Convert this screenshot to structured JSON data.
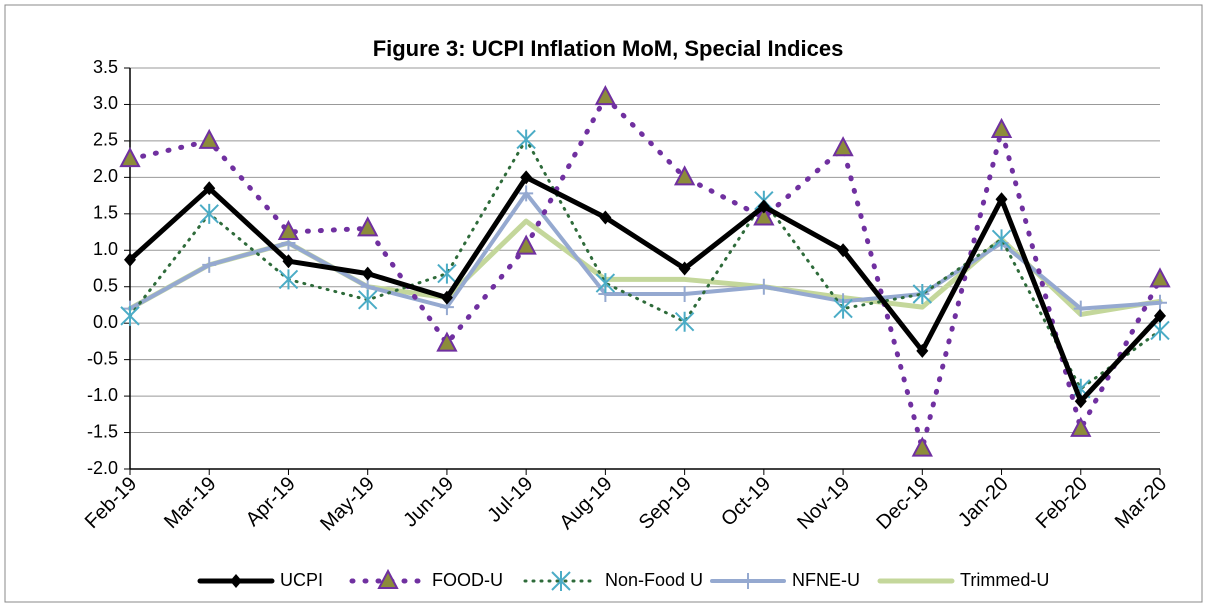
{
  "chart_data": {
    "type": "line",
    "title": "Figure 3: UCPI Inflation MoM, Special Indices",
    "categories": [
      "Feb-19",
      "Mar-19",
      "Apr-19",
      "May-19",
      "Jun-19",
      "Jul-19",
      "Aug-19",
      "Sep-19",
      "Oct-19",
      "Nov-19",
      "Dec-19",
      "Jan-20",
      "Feb-20",
      "Mar-20"
    ],
    "series": [
      {
        "name": "UCPI",
        "color": "#000000",
        "line_style": "solid",
        "line_width": 5,
        "marker": "diamond",
        "marker_color": "#000000",
        "values": [
          0.87,
          1.85,
          0.85,
          0.68,
          0.35,
          2.0,
          1.45,
          0.75,
          1.6,
          1.0,
          -0.38,
          1.7,
          -1.07,
          0.1
        ]
      },
      {
        "name": "FOOD-U",
        "color": "#7030a0",
        "line_style": "dotted",
        "line_width": 5,
        "marker": "triangle",
        "marker_color": "#8c8c3a",
        "values": [
          2.25,
          2.5,
          1.25,
          1.3,
          -0.28,
          1.05,
          3.1,
          2.0,
          1.45,
          2.4,
          -1.72,
          2.65,
          -1.45,
          0.6
        ]
      },
      {
        "name": "Non-Food U",
        "color": "#2e6b3a",
        "line_style": "dotted",
        "line_width": 3,
        "marker": "asterisk",
        "marker_color": "#4bacc6",
        "values": [
          0.1,
          1.5,
          0.6,
          0.32,
          0.68,
          2.52,
          0.55,
          0.02,
          1.68,
          0.2,
          0.4,
          1.15,
          -0.9,
          -0.1
        ]
      },
      {
        "name": "NFNE-U",
        "color": "#95a9d0",
        "line_style": "solid",
        "line_width": 4,
        "marker": "plus",
        "marker_color": "#95a9d0",
        "values": [
          0.2,
          0.8,
          1.1,
          0.5,
          0.22,
          1.78,
          0.4,
          0.4,
          0.5,
          0.3,
          0.4,
          1.1,
          0.2,
          0.28
        ]
      },
      {
        "name": "Trimmed-U",
        "color": "#c4d79b",
        "line_style": "solid",
        "line_width": 5,
        "marker": "none",
        "marker_color": "#c4d79b",
        "values": [
          0.2,
          0.8,
          1.1,
          0.5,
          0.35,
          1.4,
          0.6,
          0.6,
          0.5,
          0.35,
          0.22,
          1.15,
          0.12,
          0.3
        ]
      }
    ],
    "ylim": [
      -2.0,
      3.5
    ],
    "yticks": [
      {
        "value": -2,
        "label": "-2.0"
      },
      -1.5,
      {
        "value": -1,
        "label": "-1.0"
      },
      -0.5,
      {
        "value": 0,
        "label": "0.0"
      },
      0.5,
      {
        "value": 1,
        "label": "1.0"
      },
      1.5,
      {
        "value": 2,
        "label": "2.0"
      },
      2.5,
      {
        "value": 3,
        "label": "3.0"
      },
      3.5
    ],
    "grid": true,
    "legend": "bottom"
  }
}
